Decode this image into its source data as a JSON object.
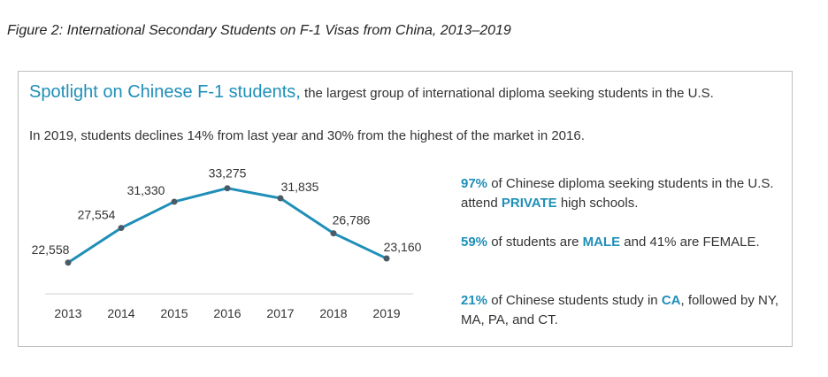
{
  "figure_caption": "Figure 2: International Secondary Students on F-1 Visas from China, 2013–2019",
  "panel": {
    "headline_highlight": "Spotlight on Chinese F-1 students,",
    "headline_rest": " the largest group of international diploma seeking students in the U.S.",
    "subline": "In 2019, students declines 14% from last year and 30% from the highest of the market in 2016."
  },
  "facts": [
    {
      "b1": "97%",
      "t1": " of Chinese diploma seeking students in the U.S. attend ",
      "b2": "PRIVATE",
      "t2": " high schools."
    },
    {
      "b1": "59%",
      "t1": " of students are ",
      "b2": "MALE",
      "t2": " and 41% are FEMALE."
    },
    {
      "b1": "21%",
      "t1": " of Chinese students study in ",
      "b2": "CA",
      "t2": ", followed by NY, MA, PA, and CT."
    }
  ],
  "colors": {
    "accent": "#1f8fb8",
    "marker": "#4a5a66",
    "axis": "#d0d0d0"
  },
  "chart_data": {
    "type": "line",
    "categories": [
      "2013",
      "2014",
      "2015",
      "2016",
      "2017",
      "2018",
      "2019"
    ],
    "values": [
      22558,
      27554,
      31330,
      33275,
      31835,
      26786,
      23160
    ],
    "data_labels": [
      "22,558",
      "27,554",
      "31,330",
      "33,275",
      "31,835",
      "26,786",
      "23,160"
    ],
    "ylim": [
      8000,
      34000
    ],
    "grid": false,
    "title": "",
    "xlabel": "",
    "ylabel": ""
  }
}
